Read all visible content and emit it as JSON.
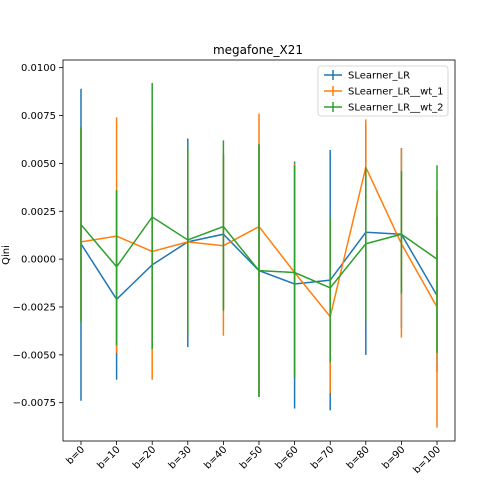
{
  "chart_data": {
    "type": "line",
    "title": "megafone_X21",
    "xlabel": "",
    "ylabel": "Qini",
    "categories": [
      "b=0",
      "b=10",
      "b=20",
      "b=30",
      "b=40",
      "b=50",
      "b=60",
      "b=70",
      "b=80",
      "b=90",
      "b=100"
    ],
    "ylim": [
      -0.0095,
      0.0104
    ],
    "yticks": [
      -0.0075,
      -0.005,
      -0.0025,
      0.0,
      0.0025,
      0.005,
      0.0075,
      0.01
    ],
    "ytick_labels": [
      "−0.0075",
      "−0.0050",
      "−0.0025",
      "0.0000",
      "0.0025",
      "0.0050",
      "0.0075",
      "0.0100"
    ],
    "grid": false,
    "legend_position": "top-right",
    "series": [
      {
        "name": "SLearner_LR",
        "color": "#1f77b4",
        "values": [
          0.0008,
          -0.0021,
          -0.0003,
          0.0009,
          0.0013,
          -0.0006,
          -0.0013,
          -0.0011,
          0.0014,
          0.0013,
          -0.0019
        ],
        "err_low": [
          -0.0074,
          -0.0063,
          -0.0047,
          -0.0046,
          -0.0026,
          -0.0072,
          -0.0078,
          -0.0079,
          -0.005,
          -0.0036,
          -0.0059
        ],
        "err_high": [
          0.0089,
          0.0036,
          0.0042,
          0.0063,
          0.0054,
          0.006,
          0.0051,
          0.0057,
          0.0071,
          0.0058,
          0.0022
        ]
      },
      {
        "name": "SLearner_LR__wt_1",
        "color": "#ff7f0e",
        "values": [
          0.0009,
          0.0012,
          0.0004,
          0.0009,
          0.0007,
          0.0017,
          -0.0007,
          -0.003,
          0.0048,
          0.0008,
          -0.0025
        ],
        "err_low": [
          -0.0032,
          -0.0049,
          -0.0063,
          -0.0038,
          -0.004,
          -0.007,
          -0.0062,
          -0.007,
          -0.0032,
          -0.0041,
          -0.0088
        ],
        "err_high": [
          0.0069,
          0.0074,
          0.0071,
          0.0058,
          0.0055,
          0.0076,
          0.005,
          0.0021,
          0.0073,
          0.0058,
          0.0036
        ]
      },
      {
        "name": "SLearner_LR__wt_2",
        "color": "#2ca02c",
        "values": [
          0.0018,
          -0.0004,
          0.0022,
          0.001,
          0.0017,
          -0.0006,
          -0.0007,
          -0.0015,
          0.0008,
          0.0013,
          0.0
        ],
        "err_low": [
          -0.0033,
          -0.0045,
          -0.0047,
          -0.0039,
          -0.0027,
          -0.0072,
          -0.0062,
          -0.0054,
          -0.0032,
          -0.0018,
          -0.0049
        ],
        "err_high": [
          0.0069,
          0.0036,
          0.0092,
          0.0058,
          0.0062,
          0.006,
          0.0049,
          0.0022,
          0.0048,
          0.0046,
          0.0049
        ]
      }
    ]
  }
}
